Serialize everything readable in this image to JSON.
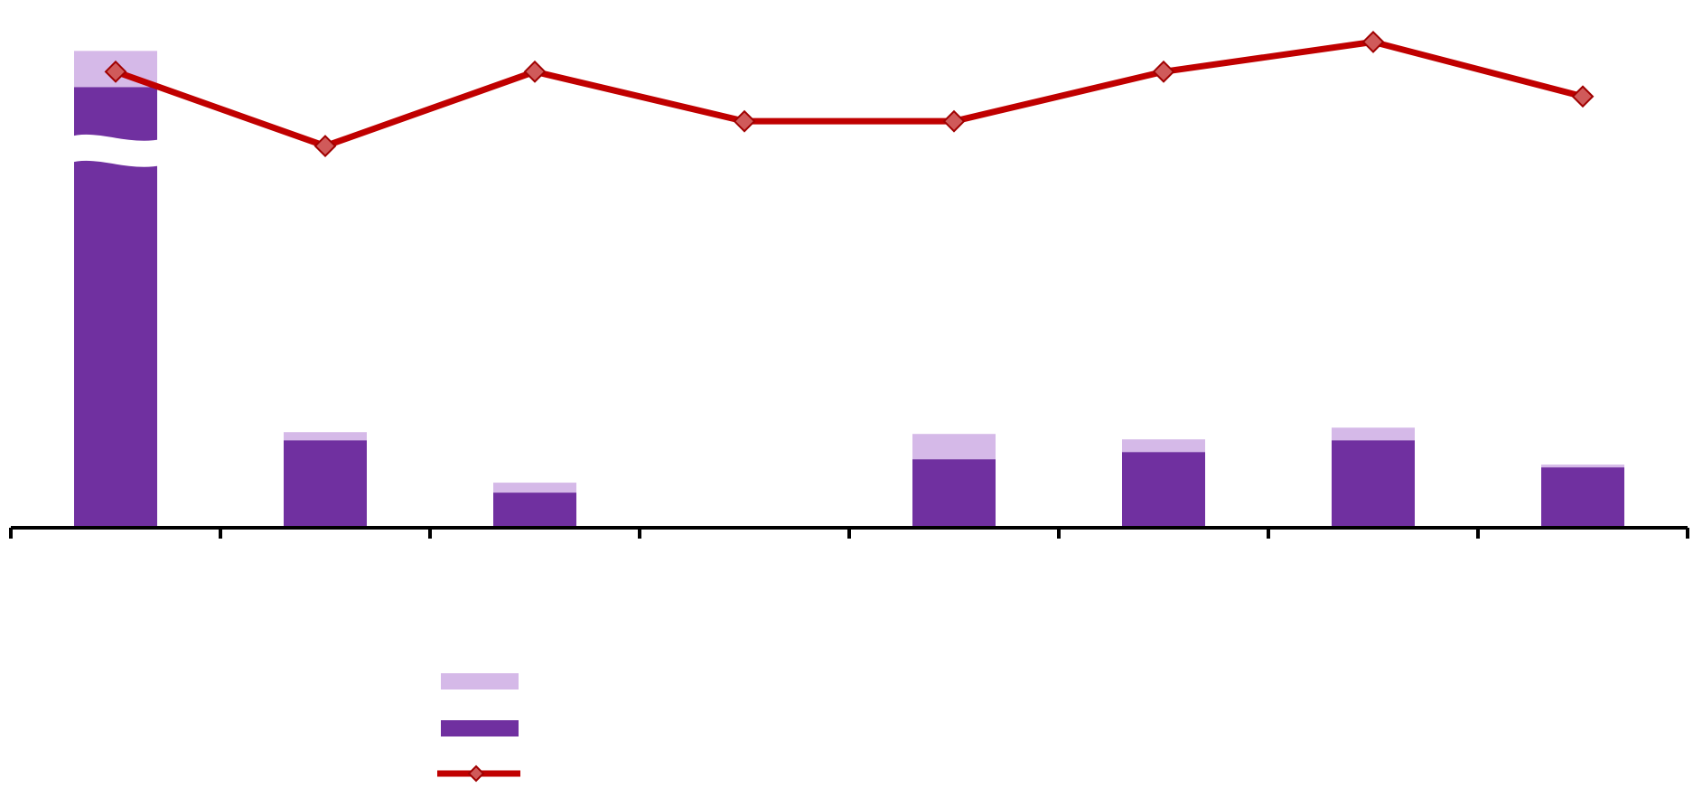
{
  "chart_data": {
    "type": "bar",
    "stacked": true,
    "categories": [
      "",
      "",
      "",
      "",
      "",
      "",
      "",
      ""
    ],
    "series": [
      {
        "kind": "bar",
        "color": "#7030a0",
        "values": [
          505,
          97,
          39,
          0.5,
          76,
          84,
          97,
          67
        ]
      },
      {
        "kind": "bar",
        "color": "#d5b9e8",
        "values": [
          66,
          9,
          11,
          0.8,
          28,
          14,
          14,
          3
        ]
      },
      {
        "kind": "line",
        "color": "#c00000",
        "marker": "diamond",
        "values": [
          0.92,
          0.77,
          0.92,
          0.82,
          0.82,
          0.92,
          0.98,
          0.87
        ]
      }
    ],
    "axis_break": true,
    "ylim": [
      0,
      571
    ],
    "y2lim": [
      0,
      1.05
    ],
    "legend_position": "bottom",
    "grid": false
  }
}
